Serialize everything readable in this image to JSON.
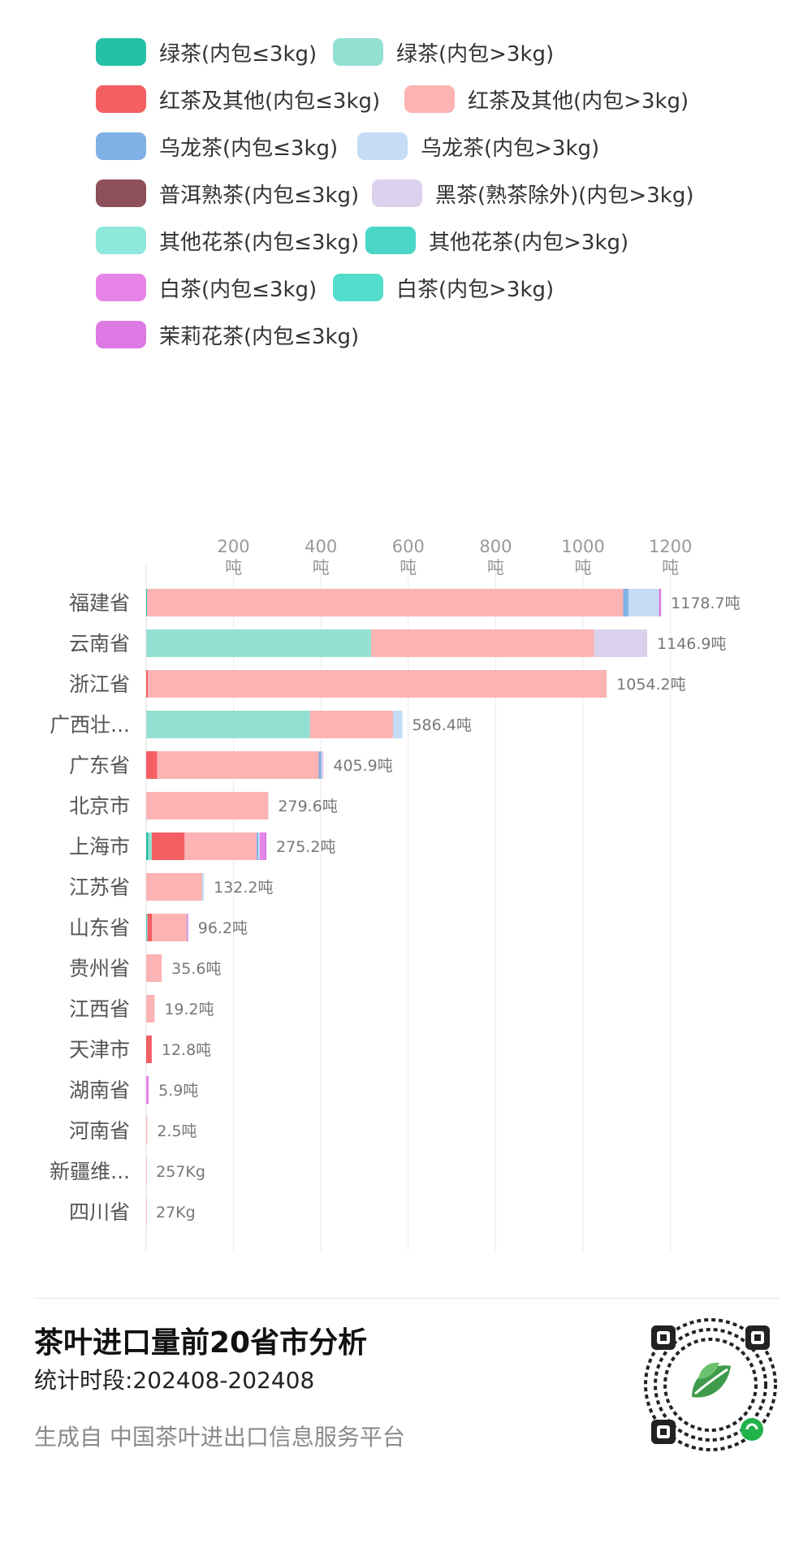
{
  "legend": [
    {
      "label": "绿茶(内包≤3kg)",
      "color": "#26c0a6"
    },
    {
      "label": "绿茶(内包>3kg)",
      "color": "#93e0d2"
    },
    {
      "label": "红茶及其他(内包≤3kg)",
      "color": "#f45f63"
    },
    {
      "label": "红茶及其他(内包>3kg)",
      "color": "#fbb3b4"
    },
    {
      "label": "乌龙茶(内包≤3kg)",
      "color": "#7fb0e6"
    },
    {
      "label": "乌龙茶(内包>3kg)",
      "color": "#c4dcf5"
    },
    {
      "label": "普洱熟茶(内包≤3kg)",
      "color": "#8d4f5a"
    },
    {
      "label": "黑茶(熟茶除外)(内包>3kg)",
      "color": "#dcd1ec"
    },
    {
      "label": "其他花茶(内包≤3kg)",
      "color": "#8ee8dc"
    },
    {
      "label": "其他花茶(内包>3kg)",
      "color": "#49d6c6"
    },
    {
      "label": "白茶(内包≤3kg)",
      "color": "#e784e7"
    },
    {
      "label": "白茶(内包>3kg)",
      "color": "#52dccb"
    },
    {
      "label": "茉莉花茶(内包≤3kg)",
      "color": "#dc79e2"
    }
  ],
  "chart_data": {
    "type": "bar",
    "orientation": "horizontal",
    "stacked": true,
    "unit": "吨",
    "xlim": [
      0,
      1200
    ],
    "x_ticks": [
      {
        "value": 200,
        "label": "200",
        "unit": "吨"
      },
      {
        "value": 400,
        "label": "400",
        "unit": "吨"
      },
      {
        "value": 600,
        "label": "600",
        "unit": "吨"
      },
      {
        "value": 800,
        "label": "800",
        "unit": "吨"
      },
      {
        "value": 1000,
        "label": "1000",
        "unit": "吨"
      },
      {
        "value": 1200,
        "label": "1200",
        "unit": "吨"
      }
    ],
    "grid": true,
    "legend_position": "top",
    "categories": [
      "福建省",
      "云南省",
      "浙江省",
      "广西壮...",
      "广东省",
      "北京市",
      "上海市",
      "江苏省",
      "山东省",
      "贵州省",
      "江西省",
      "天津市",
      "湖南省",
      "河南省",
      "新疆维...",
      "四川省"
    ],
    "total_labels": [
      "1178.7吨",
      "1146.9吨",
      "1054.2吨",
      "586.4吨",
      "405.9吨",
      "279.6吨",
      "275.2吨",
      "132.2吨",
      "96.2吨",
      "35.6吨",
      "19.2吨",
      "12.8吨",
      "5.9吨",
      "2.5吨",
      "257Kg",
      "27Kg"
    ],
    "series": [
      {
        "name": "绿茶(内包≤3kg)",
        "values": [
          2,
          0,
          0,
          0,
          0,
          0,
          5,
          0,
          1,
          0,
          0,
          0,
          0,
          0,
          0,
          0
        ]
      },
      {
        "name": "绿茶(内包>3kg)",
        "values": [
          0,
          515,
          0,
          375,
          0,
          0,
          8,
          0,
          2,
          0,
          0,
          0,
          0,
          0,
          0,
          0
        ]
      },
      {
        "name": "红茶及其他(内包≤3kg)",
        "values": [
          0,
          0,
          4,
          0,
          25,
          0,
          75,
          0,
          10,
          0,
          0,
          12.8,
          0,
          0,
          0,
          0
        ]
      },
      {
        "name": "红茶及其他(内包>3kg)",
        "values": [
          1090,
          510,
          1050.2,
          190,
          370,
          279.6,
          165,
          128,
          80,
          35.6,
          19.2,
          0,
          0,
          2.5,
          0.257,
          0.027
        ]
      },
      {
        "name": "乌龙茶(内包≤3kg)",
        "values": [
          12,
          0,
          0,
          0,
          6,
          0,
          4,
          0,
          1,
          0,
          0,
          0,
          0,
          0,
          0,
          0
        ]
      },
      {
        "name": "乌龙茶(内包>3kg)",
        "values": [
          70,
          0,
          0,
          21.4,
          0,
          0,
          3,
          4.2,
          0,
          0,
          0,
          0,
          0,
          0,
          0,
          0
        ]
      },
      {
        "name": "黑茶(熟茶除外)(内包>3kg)",
        "values": [
          0,
          121.9,
          0,
          0,
          4.9,
          0,
          0,
          0,
          0,
          0,
          0,
          0,
          0,
          0,
          0,
          0
        ]
      },
      {
        "name": "白茶(内包≤3kg)",
        "values": [
          0,
          0,
          0,
          0,
          0,
          0,
          10,
          0,
          2.2,
          0,
          0,
          0,
          5.9,
          0,
          0,
          0
        ]
      },
      {
        "name": "茉莉花茶(内包≤3kg)",
        "values": [
          4.7,
          0,
          0,
          0,
          0,
          0,
          5.2,
          0,
          0,
          0,
          0,
          0,
          0,
          0,
          0,
          0
        ]
      }
    ]
  },
  "footer": {
    "title": "茶叶进口量前20省市分析",
    "period": "统计时段:202408-202408",
    "source": "生成自 中国茶叶进出口信息服务平台"
  }
}
